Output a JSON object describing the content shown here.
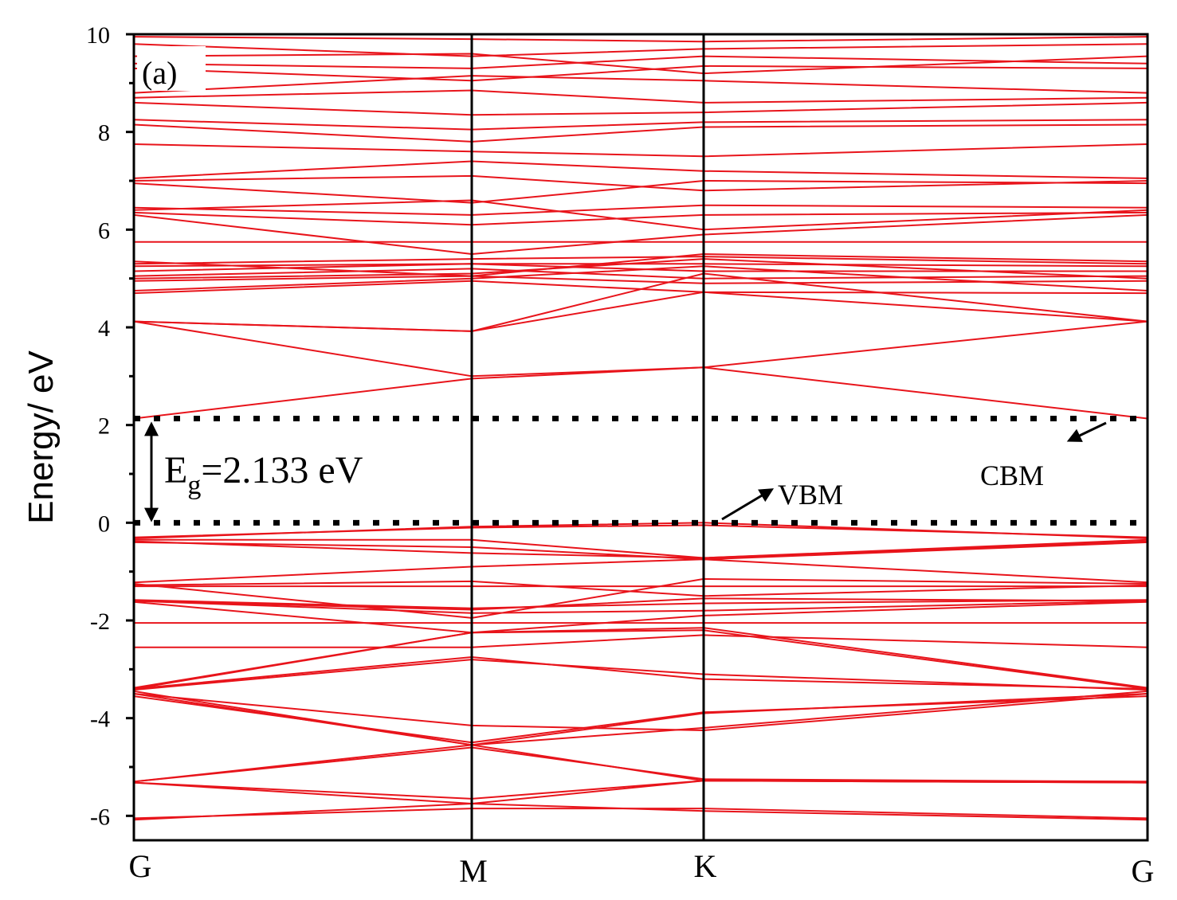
{
  "chart_data": {
    "type": "line",
    "panel_label": "(a)",
    "ylabel": "Energy/ eV",
    "xlabel": "",
    "ylim": [
      -6.5,
      10
    ],
    "yticks": [
      -6,
      -4,
      -2,
      0,
      2,
      4,
      6,
      8,
      10
    ],
    "xlim": [
      0,
      3
    ],
    "kpoints": [
      {
        "label": "G",
        "x": 0
      },
      {
        "label": "M",
        "x": 1
      },
      {
        "label": "K",
        "x": 1.6863
      },
      {
        "label": "G",
        "x": 3
      }
    ],
    "fermi_lines": [
      0,
      2.133
    ],
    "band_gap": {
      "text_main": "E",
      "text_sub": "g",
      "text_rest": "=2.133 eV",
      "value": 2.133,
      "unit": "eV"
    },
    "annotations": [
      {
        "text": "VBM",
        "points_to": [
          1.6863,
          0
        ]
      },
      {
        "text": "CBM",
        "points_to": [
          3,
          2.133
        ]
      }
    ],
    "series_color": "#e8141b",
    "bands": [
      {
        "name": "",
        "y": [
          -6.08,
          -5.75,
          -5.9,
          -6.08
        ]
      },
      {
        "name": "",
        "y": [
          -6.05,
          -5.85,
          -5.85,
          -6.05
        ]
      },
      {
        "name": "",
        "y": [
          -5.32,
          -5.65,
          -5.28,
          -5.32
        ]
      },
      {
        "name": "",
        "y": [
          -5.32,
          -5.75,
          -5.28,
          -5.32
        ]
      },
      {
        "name": "",
        "y": [
          -5.3,
          -4.55,
          -5.28,
          -5.3
        ]
      },
      {
        "name": "",
        "y": [
          -5.3,
          -4.6,
          -5.25,
          -5.3
        ]
      },
      {
        "name": "",
        "y": [
          -3.55,
          -4.5,
          -3.88,
          -3.55
        ]
      },
      {
        "name": "",
        "y": [
          -3.5,
          -4.55,
          -3.9,
          -3.5
        ]
      },
      {
        "name": "",
        "y": [
          -3.5,
          -4.15,
          -4.25,
          -3.5
        ]
      },
      {
        "name": "",
        "y": [
          -3.45,
          -4.55,
          -4.2,
          -3.45
        ]
      },
      {
        "name": "",
        "y": [
          -3.42,
          -2.8,
          -3.1,
          -3.42
        ]
      },
      {
        "name": "",
        "y": [
          -3.4,
          -2.75,
          -3.2,
          -3.4
        ]
      },
      {
        "name": "",
        "y": [
          -3.4,
          -2.25,
          -2.2,
          -3.4
        ]
      },
      {
        "name": "",
        "y": [
          -3.38,
          -2.25,
          -2.15,
          -3.38
        ]
      },
      {
        "name": "",
        "y": [
          -2.55,
          -2.55,
          -2.3,
          -2.55
        ]
      },
      {
        "name": "",
        "y": [
          -2.05,
          -2.05,
          -2.05,
          -2.05
        ]
      },
      {
        "name": "",
        "y": [
          -1.62,
          -2.25,
          -1.9,
          -1.62
        ]
      },
      {
        "name": "",
        "y": [
          -1.6,
          -1.85,
          -1.8,
          -1.6
        ]
      },
      {
        "name": "",
        "y": [
          -1.6,
          -1.78,
          -1.55,
          -1.6
        ]
      },
      {
        "name": "",
        "y": [
          -1.58,
          -1.75,
          -1.65,
          -1.58
        ]
      },
      {
        "name": "",
        "y": [
          -1.3,
          -1.3,
          -1.3,
          -1.3
        ]
      },
      {
        "name": "",
        "y": [
          -1.28,
          -1.2,
          -1.5,
          -1.28
        ]
      },
      {
        "name": "",
        "y": [
          -1.25,
          -1.95,
          -1.15,
          -1.25
        ]
      },
      {
        "name": "",
        "y": [
          -1.22,
          -0.9,
          -0.75,
          -1.22
        ]
      },
      {
        "name": "",
        "y": [
          -0.4,
          -0.5,
          -0.75,
          -0.4
        ]
      },
      {
        "name": "",
        "y": [
          -0.38,
          -0.62,
          -0.72,
          -0.38
        ]
      },
      {
        "name": "",
        "y": [
          -0.35,
          -0.35,
          -0.72,
          -0.35
        ]
      },
      {
        "name": "",
        "y": [
          -0.32,
          -0.08,
          0.0,
          -0.32
        ]
      },
      {
        "name": "",
        "y": [
          -0.3,
          -0.1,
          -0.05,
          -0.3
        ]
      },
      {
        "name": "",
        "y": [
          2.133,
          2.95,
          3.18,
          2.133
        ]
      },
      {
        "name": "",
        "y": [
          4.12,
          3.0,
          3.18,
          4.12
        ]
      },
      {
        "name": "",
        "y": [
          4.12,
          3.92,
          4.72,
          4.12
        ]
      },
      {
        "name": "",
        "y": [
          4.12,
          3.92,
          5.1,
          4.12
        ]
      },
      {
        "name": "",
        "y": [
          4.7,
          4.95,
          4.72,
          4.7
        ]
      },
      {
        "name": "",
        "y": [
          4.75,
          5.0,
          5.25,
          4.75
        ]
      },
      {
        "name": "",
        "y": [
          4.95,
          5.05,
          4.9,
          4.95
        ]
      },
      {
        "name": "",
        "y": [
          5.0,
          5.1,
          5.4,
          5.0
        ]
      },
      {
        "name": "",
        "y": [
          5.05,
          5.2,
          5.0,
          5.05
        ]
      },
      {
        "name": "",
        "y": [
          5.15,
          5.3,
          5.15,
          5.15
        ]
      },
      {
        "name": "",
        "y": [
          5.25,
          5.3,
          5.3,
          5.25
        ]
      },
      {
        "name": "",
        "y": [
          5.3,
          5.4,
          5.45,
          5.3
        ]
      },
      {
        "name": "",
        "y": [
          5.35,
          5.05,
          5.5,
          5.35
        ]
      },
      {
        "name": "",
        "y": [
          5.75,
          5.75,
          5.75,
          5.75
        ]
      },
      {
        "name": "",
        "y": [
          6.3,
          5.5,
          5.9,
          6.3
        ]
      },
      {
        "name": "",
        "y": [
          6.35,
          6.1,
          6.3,
          6.35
        ]
      },
      {
        "name": "",
        "y": [
          6.4,
          6.6,
          6.0,
          6.4
        ]
      },
      {
        "name": "",
        "y": [
          6.45,
          6.3,
          6.5,
          6.45
        ]
      },
      {
        "name": "",
        "y": [
          6.95,
          6.55,
          7.0,
          6.95
        ]
      },
      {
        "name": "",
        "y": [
          7.0,
          7.1,
          6.8,
          7.0
        ]
      },
      {
        "name": "",
        "y": [
          7.05,
          7.4,
          7.2,
          7.05
        ]
      },
      {
        "name": "",
        "y": [
          7.75,
          7.6,
          7.5,
          7.75
        ]
      },
      {
        "name": "",
        "y": [
          8.15,
          7.8,
          8.1,
          8.15
        ]
      },
      {
        "name": "",
        "y": [
          8.25,
          8.05,
          8.2,
          8.25
        ]
      },
      {
        "name": "",
        "y": [
          8.6,
          8.35,
          8.4,
          8.6
        ]
      },
      {
        "name": "",
        "y": [
          8.7,
          8.85,
          8.6,
          8.7
        ]
      },
      {
        "name": "",
        "y": [
          8.8,
          9.15,
          9.05,
          8.8
        ]
      },
      {
        "name": "",
        "y": [
          9.3,
          9.05,
          9.35,
          9.3
        ]
      },
      {
        "name": "",
        "y": [
          9.4,
          9.3,
          9.55,
          9.4
        ]
      },
      {
        "name": "",
        "y": [
          9.55,
          9.6,
          9.2,
          9.55
        ]
      },
      {
        "name": "",
        "y": [
          9.8,
          9.55,
          9.7,
          9.8
        ]
      },
      {
        "name": "",
        "y": [
          9.95,
          9.9,
          9.85,
          9.95
        ]
      }
    ]
  }
}
